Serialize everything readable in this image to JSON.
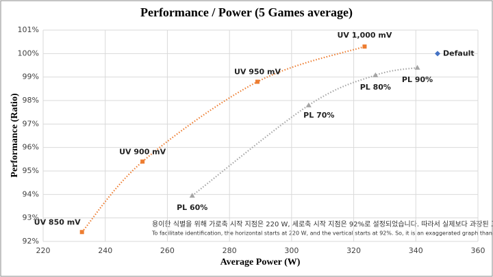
{
  "chart_data": {
    "type": "scatter",
    "title": "Performance / Power (5 Games average)",
    "x_label": "Average Power (W)",
    "y_label": "Performance (Ratio)",
    "annotation": "용이한 식별을 위해 가로축 시작 지점은 220 W, 세로축 시작 지점은 92%로 설정되었습니다. 따라서 실제보다 과장된 그래프입니다.",
    "annotation_en": "To facilitate identification, the horizontal starts at 220 W, and the vertical starts at 92%. So, it is an exaggerated graph than itactually is.",
    "xlim": [
      220,
      360
    ],
    "xticks": [
      220,
      240,
      260,
      280,
      300,
      320,
      340,
      360
    ],
    "ylim": [
      92,
      101
    ],
    "yticks": [
      {
        "value": 92,
        "label": "92%"
      },
      {
        "value": 93,
        "label": "93%"
      },
      {
        "value": 94,
        "label": "94%"
      },
      {
        "value": 95,
        "label": "95%"
      },
      {
        "value": 96,
        "label": "96%"
      },
      {
        "value": 97,
        "label": "97%"
      },
      {
        "value": 98,
        "label": "98%"
      },
      {
        "value": 99,
        "label": "99%"
      },
      {
        "value": 100,
        "label": "100%"
      },
      {
        "value": 101,
        "label": "101%"
      }
    ],
    "grid": true,
    "series": [
      {
        "color": "#ed7d31",
        "marker": "square",
        "trendline": true,
        "labels": [
          "UV 850 mV",
          "UV 900 mV",
          "UV 950 mV",
          "UV 1,000 mV"
        ],
        "x": [
          232.5,
          252,
          289,
          323.5
        ],
        "values": [
          92.4,
          95.4,
          98.8,
          100.3
        ]
      },
      {
        "color": "#a5a5a5",
        "marker": "triangle",
        "trendline": true,
        "labels": [
          "PL 60%",
          "PL 70%",
          "PL 80%",
          "PL 90%"
        ],
        "x": [
          268,
          305.5,
          327,
          340.5
        ],
        "values": [
          93.95,
          97.8,
          99.08,
          99.4
        ]
      },
      {
        "color": "#4472c4",
        "marker": "diamond",
        "trendline": false,
        "labels": [
          "Default"
        ],
        "x": [
          347
        ],
        "values": [
          100
        ]
      }
    ]
  }
}
